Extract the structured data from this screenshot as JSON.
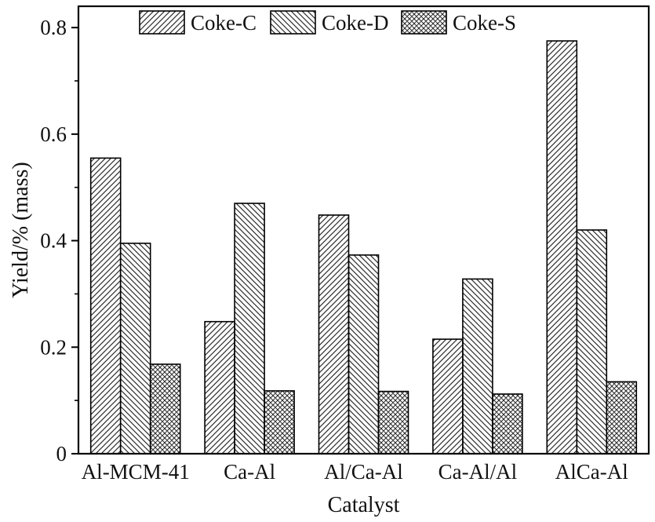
{
  "figure": {
    "background": "#ffffff",
    "axis_color": "#000000",
    "text_color": "#111111"
  },
  "chart_data": {
    "type": "bar",
    "title": "",
    "xlabel": "Catalyst",
    "ylabel": "Yield/% (mass)",
    "categories": [
      "Al-MCM-41",
      "Ca-Al",
      "Al/Ca-Al",
      "Ca-Al/Al",
      "AlCa-Al"
    ],
    "series": [
      {
        "name": "Coke-C",
        "hatch": "diagonal-up",
        "values": [
          0.555,
          0.248,
          0.448,
          0.215,
          0.775
        ]
      },
      {
        "name": "Coke-D",
        "hatch": "diagonal-down",
        "values": [
          0.395,
          0.47,
          0.373,
          0.328,
          0.42
        ]
      },
      {
        "name": "Coke-S",
        "hatch": "crosshatch",
        "values": [
          0.168,
          0.118,
          0.117,
          0.112,
          0.135
        ]
      }
    ],
    "ylim": [
      0,
      0.84
    ],
    "yticks": [
      0,
      0.2,
      0.4,
      0.6,
      0.8
    ],
    "ytick_labels": [
      "0",
      "0.2",
      "0.4",
      "0.6",
      "0.8"
    ],
    "minor_ytick_step": 0.1,
    "legend_position": "top-inside",
    "grid": false,
    "bar_fill": "#ffffff",
    "hatch_color": "#2a2a2a"
  }
}
